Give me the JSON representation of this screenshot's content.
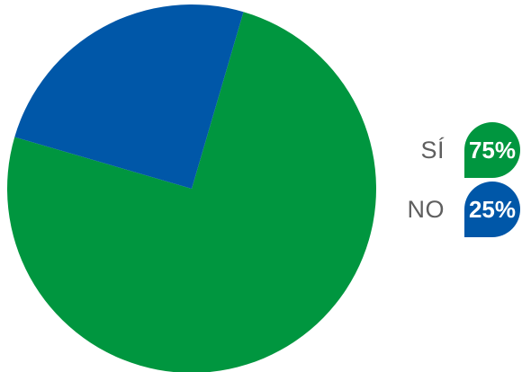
{
  "chart_data": {
    "type": "pie",
    "slices": [
      {
        "label": "SÍ",
        "value": 75,
        "display": "75%",
        "color": "#00963f"
      },
      {
        "label": "NO",
        "value": 25,
        "display": "25%",
        "color": "#0057a8"
      }
    ],
    "legend_position": "right"
  }
}
